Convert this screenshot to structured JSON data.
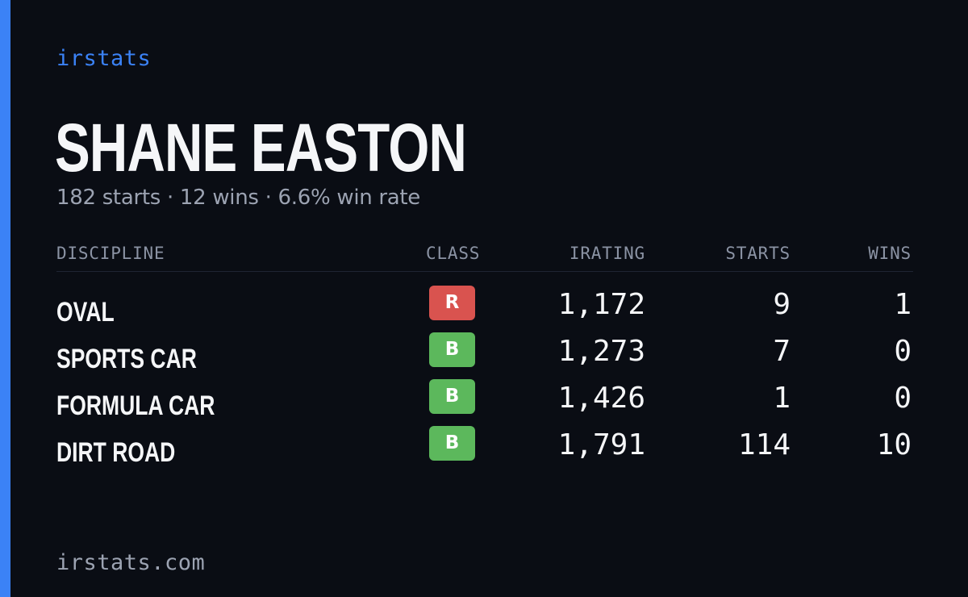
{
  "brand": "irstats",
  "player": {
    "name": "SHANE EASTON",
    "summary": "182 starts · 12 wins · 6.6% win rate"
  },
  "table": {
    "headers": {
      "discipline": "DISCIPLINE",
      "class": "CLASS",
      "irating": "IRATING",
      "starts": "STARTS",
      "wins": "WINS"
    },
    "rows": [
      {
        "discipline": "OVAL",
        "class": "R",
        "class_color": "#d9534f",
        "irating": "1,172",
        "starts": "9",
        "wins": "1"
      },
      {
        "discipline": "SPORTS CAR",
        "class": "B",
        "class_color": "#5cb85c",
        "irating": "1,273",
        "starts": "7",
        "wins": "0"
      },
      {
        "discipline": "FORMULA CAR",
        "class": "B",
        "class_color": "#5cb85c",
        "irating": "1,426",
        "starts": "1",
        "wins": "0"
      },
      {
        "discipline": "DIRT ROAD",
        "class": "B",
        "class_color": "#5cb85c",
        "irating": "1,791",
        "starts": "114",
        "wins": "10"
      }
    ]
  },
  "footer": "irstats.com",
  "colors": {
    "accent": "#3b82f6",
    "background": "#0a0d14"
  }
}
